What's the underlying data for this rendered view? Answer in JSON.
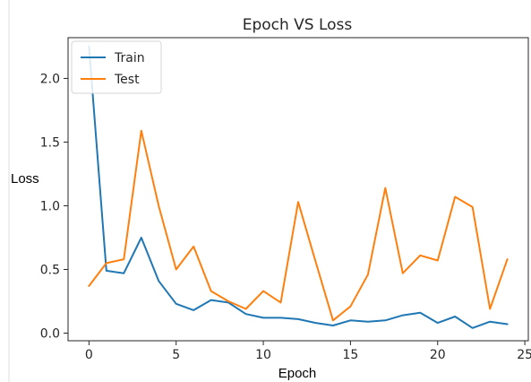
{
  "chart_data": {
    "type": "line",
    "title": "Epoch VS Loss",
    "xlabel": "Epoch",
    "ylabel": "Loss",
    "xlim": [
      -1.2,
      25.2
    ],
    "ylim": [
      -0.06,
      2.32
    ],
    "xticks": [
      0,
      5,
      10,
      15,
      20,
      25
    ],
    "yticks": [
      0.0,
      0.5,
      1.0,
      1.5,
      2.0
    ],
    "xtick_labels": [
      "0",
      "5",
      "10",
      "15",
      "20",
      "25"
    ],
    "ytick_labels": [
      "0.0",
      "0.5",
      "1.0",
      "1.5",
      "2.0"
    ],
    "grid": false,
    "legend_position": "top-left",
    "x": [
      0,
      1,
      2,
      3,
      4,
      5,
      6,
      7,
      8,
      9,
      10,
      11,
      12,
      13,
      14,
      15,
      16,
      17,
      18,
      19,
      20,
      21,
      22,
      23,
      24
    ],
    "series": [
      {
        "name": "Train",
        "color": "#1f77b4",
        "values": [
          2.25,
          0.49,
          0.47,
          0.75,
          0.41,
          0.23,
          0.18,
          0.26,
          0.24,
          0.15,
          0.12,
          0.12,
          0.11,
          0.08,
          0.06,
          0.1,
          0.09,
          0.1,
          0.14,
          0.16,
          0.08,
          0.13,
          0.04,
          0.09,
          0.07
        ]
      },
      {
        "name": "Test",
        "color": "#ff7f0e",
        "values": [
          0.37,
          0.55,
          0.58,
          1.59,
          1.0,
          0.5,
          0.68,
          0.33,
          0.25,
          0.19,
          0.33,
          0.24,
          1.03,
          0.56,
          0.1,
          0.21,
          0.46,
          1.14,
          0.47,
          0.61,
          0.57,
          1.07,
          0.99,
          0.19,
          0.58
        ]
      }
    ]
  }
}
